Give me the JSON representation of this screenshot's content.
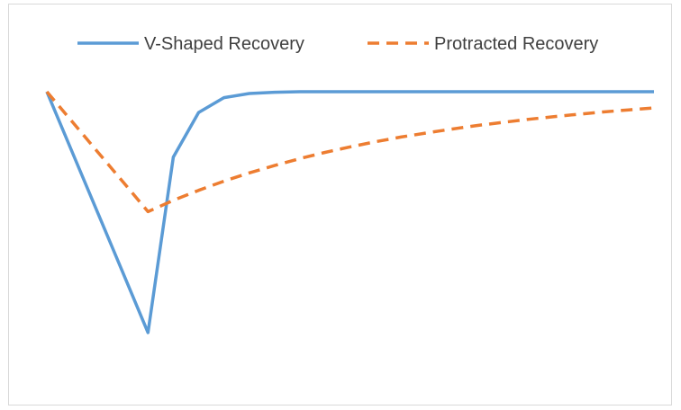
{
  "chart_data": {
    "type": "line",
    "title": "",
    "xlabel": "",
    "ylabel": "",
    "grid": false,
    "axes_visible": false,
    "legend_position": "top",
    "x": [
      0,
      1,
      2,
      3,
      4,
      5,
      6,
      7,
      8,
      9,
      10,
      11,
      12,
      13,
      14,
      15,
      16,
      17,
      18,
      19,
      20,
      21,
      22,
      23,
      24
    ],
    "ylim": [
      0,
      1
    ],
    "series": [
      {
        "name": "V-Shaped Recovery",
        "color": "#5b9bd5",
        "style": "solid",
        "values": [
          1.0,
          0.765,
          0.53,
          0.295,
          0.06,
          0.745,
          0.919,
          0.977,
          0.993,
          0.998,
          1.0,
          1.0,
          1.0,
          1.0,
          1.0,
          1.0,
          1.0,
          1.0,
          1.0,
          1.0,
          1.0,
          1.0,
          1.0,
          1.0,
          1.0
        ]
      },
      {
        "name": "Protracted Recovery",
        "color": "#ed7d31",
        "style": "dashed",
        "values": [
          1.0,
          0.883,
          0.766,
          0.649,
          0.532,
          0.576,
          0.615,
          0.651,
          0.683,
          0.712,
          0.739,
          0.763,
          0.785,
          0.805,
          0.823,
          0.839,
          0.854,
          0.868,
          0.88,
          0.892,
          0.902,
          0.912,
          0.921,
          0.929,
          0.937
        ]
      }
    ]
  }
}
